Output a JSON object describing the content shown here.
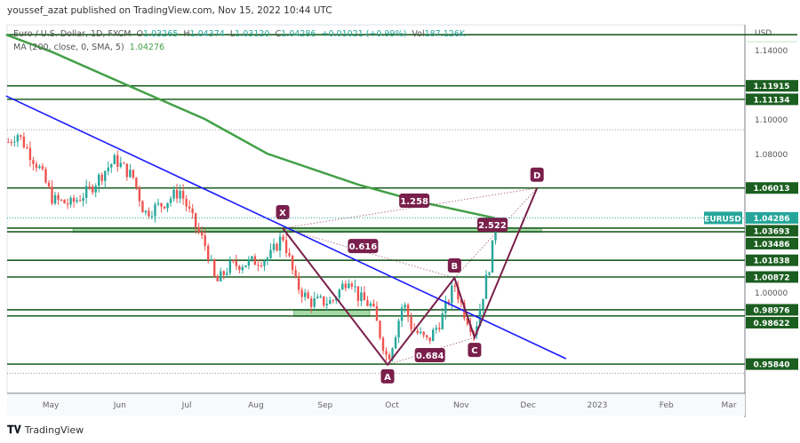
{
  "header": {
    "published": "youssef_azat published on TradingView.com, Nov 15, 2022 10:44 UTC"
  },
  "legend": {
    "symbol": "Euro / U.S. Dollar, 1D, FXCM",
    "o_label": "O",
    "o": "1.03265",
    "h_label": "H",
    "h": "1.04374",
    "l_label": "L",
    "l": "1.03120",
    "c_label": "C",
    "c": "1.04286",
    "change": "+0.01021 (+0.99%)",
    "vol_label": "Vol",
    "vol": "187.126K",
    "ma_label": "MA (200, close, 0, SMA, 5)",
    "ma_value": "1.04276"
  },
  "footer": {
    "logo": "TradingView",
    "logo_mark": "17"
  },
  "colors": {
    "up": "#26a69a",
    "down": "#ef5350",
    "level": "#1b5e20",
    "ma": "#43a047",
    "trend": "#1a1aff",
    "pattern": "#7a1f4b",
    "zone": "#81c784"
  },
  "chart_data": {
    "type": "candlestick",
    "currency": "USD",
    "symbol_tag": "EURUSD",
    "last_price": 1.04286,
    "last_price_label": "1.04286",
    "ylim": [
      0.947,
      1.153
    ],
    "xlim_days_from_may1": [
      -20,
      331
    ],
    "y_ticks": [
      "1.14000",
      "1.10000",
      "1.08000",
      "1.00000"
    ],
    "x_ticks": [
      {
        "label": "May",
        "day": 0
      },
      {
        "label": "Jun",
        "day": 31
      },
      {
        "label": "Jul",
        "day": 61
      },
      {
        "label": "Aug",
        "day": 92
      },
      {
        "label": "Sep",
        "day": 123
      },
      {
        "label": "Oct",
        "day": 153
      },
      {
        "label": "Nov",
        "day": 184
      },
      {
        "label": "Dec",
        "day": 214
      },
      {
        "label": "2023",
        "day": 245
      },
      {
        "label": "Feb",
        "day": 276
      },
      {
        "label": "Mar",
        "day": 304
      }
    ],
    "price_path": [
      [
        -19,
        1.0867
      ],
      [
        -15,
        1.0918
      ],
      [
        -5,
        1.0713
      ],
      [
        1,
        1.0533
      ],
      [
        9,
        1.0508
      ],
      [
        17,
        1.0585
      ],
      [
        25,
        1.0713
      ],
      [
        29,
        1.0764
      ],
      [
        37,
        1.0662
      ],
      [
        42,
        1.0456
      ],
      [
        50,
        1.0508
      ],
      [
        58,
        1.0585
      ],
      [
        64,
        1.0405
      ],
      [
        70,
        1.0251
      ],
      [
        74,
        1.0046
      ],
      [
        80,
        1.0149
      ],
      [
        90,
        1.0174
      ],
      [
        98,
        1.02
      ],
      [
        104,
        1.0328
      ],
      [
        110,
        1.0046
      ],
      [
        116,
        0.9944
      ],
      [
        126,
        0.9944
      ],
      [
        134,
        1.0097
      ],
      [
        138,
        0.9969
      ],
      [
        144,
        0.9918
      ],
      [
        148,
        0.9738
      ],
      [
        151,
        0.961
      ],
      [
        154,
        0.9738
      ],
      [
        158,
        0.9944
      ],
      [
        162,
        0.979
      ],
      [
        169,
        0.9713
      ],
      [
        175,
        0.9841
      ],
      [
        181,
        1.0046
      ],
      [
        185,
        0.9892
      ],
      [
        190,
        0.9764
      ],
      [
        193,
        0.9944
      ],
      [
        197,
        1.0174
      ],
      [
        200,
        1.0429
      ]
    ],
    "levels": [
      {
        "price": 1.1487,
        "label": ""
      },
      {
        "price": 1.11915,
        "label": "1.11915"
      },
      {
        "price": 1.11134,
        "label": "1.11134"
      },
      {
        "price": 1.06013,
        "label": "1.06013"
      },
      {
        "price": 1.03693,
        "label": "1.03693"
      },
      {
        "price": 1.03486,
        "label": "1.03486"
      },
      {
        "price": 1.01838,
        "label": "1.01838"
      },
      {
        "price": 1.00872,
        "label": "1.00872"
      },
      {
        "price": 0.98976,
        "label": "0.98976"
      },
      {
        "price": 0.98622,
        "label": "0.98622"
      },
      {
        "price": 0.9584,
        "label": "0.95840"
      }
    ],
    "dotted_levels": [
      1.0938,
      0.953
    ],
    "zones": [
      {
        "from_day": 10,
        "to_day": 220,
        "low": 1.0345,
        "high": 1.0371
      },
      {
        "from_day": 109,
        "to_day": 143,
        "low": 0.9859,
        "high": 0.9895
      }
    ],
    "ma_path": [
      [
        -20,
        1.1487
      ],
      [
        1,
        1.1385
      ],
      [
        37,
        1.118
      ],
      [
        69,
        1.1
      ],
      [
        97,
        1.08
      ],
      [
        138,
        1.062
      ],
      [
        166,
        1.052
      ],
      [
        199,
        1.0428
      ]
    ],
    "trendline": [
      [
        -20,
        1.1133
      ],
      [
        231,
        0.9615
      ]
    ],
    "pattern": {
      "points": [
        {
          "name": "X",
          "day": 104,
          "price": 1.0369
        },
        {
          "name": "A",
          "day": 151,
          "price": 0.958
        },
        {
          "name": "B",
          "day": 181,
          "price": 1.0082
        },
        {
          "name": "C",
          "day": 190,
          "price": 0.9738
        },
        {
          "name": "D",
          "day": 218,
          "price": 1.0601
        }
      ],
      "ratios": [
        {
          "label": "1.258",
          "day": 163,
          "price": 1.0528
        },
        {
          "label": "0.616",
          "day": 140,
          "price": 1.0266
        },
        {
          "label": "0.684",
          "day": 170,
          "price": 0.9636
        },
        {
          "label": "2.522",
          "day": 198,
          "price": 1.0389
        }
      ]
    }
  }
}
